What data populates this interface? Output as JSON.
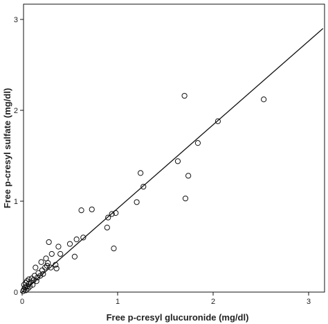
{
  "chart_data": {
    "type": "scatter",
    "title": "",
    "xlabel": "Free p-cresyl glucuronide (mg/dl)",
    "ylabel": "Free p-cresyl sulfate (mg/dl)",
    "xlim": [
      0,
      3
    ],
    "ylim": [
      0,
      3
    ],
    "xticks": [
      0,
      1,
      2,
      3
    ],
    "yticks": [
      0,
      1,
      2,
      3
    ],
    "grid": false,
    "legend": "none",
    "regression_line": {
      "x": [
        0,
        3.15
      ],
      "y": [
        0,
        2.9
      ]
    },
    "points": [
      {
        "x": 0.01,
        "y": 0.01
      },
      {
        "x": 0.02,
        "y": 0.03
      },
      {
        "x": 0.03,
        "y": 0.05
      },
      {
        "x": 0.02,
        "y": 0.08
      },
      {
        "x": 0.04,
        "y": 0.02
      },
      {
        "x": 0.04,
        "y": 0.1
      },
      {
        "x": 0.05,
        "y": 0.06
      },
      {
        "x": 0.05,
        "y": 0.12
      },
      {
        "x": 0.06,
        "y": 0.04
      },
      {
        "x": 0.07,
        "y": 0.09
      },
      {
        "x": 0.07,
        "y": 0.14
      },
      {
        "x": 0.08,
        "y": 0.06
      },
      {
        "x": 0.09,
        "y": 0.11
      },
      {
        "x": 0.1,
        "y": 0.15
      },
      {
        "x": 0.11,
        "y": 0.08
      },
      {
        "x": 0.12,
        "y": 0.13
      },
      {
        "x": 0.13,
        "y": 0.18
      },
      {
        "x": 0.14,
        "y": 0.27
      },
      {
        "x": 0.15,
        "y": 0.12
      },
      {
        "x": 0.16,
        "y": 0.16
      },
      {
        "x": 0.17,
        "y": 0.21
      },
      {
        "x": 0.19,
        "y": 0.18
      },
      {
        "x": 0.2,
        "y": 0.33
      },
      {
        "x": 0.21,
        "y": 0.24
      },
      {
        "x": 0.22,
        "y": 0.2
      },
      {
        "x": 0.24,
        "y": 0.27
      },
      {
        "x": 0.25,
        "y": 0.37
      },
      {
        "x": 0.26,
        "y": 0.29
      },
      {
        "x": 0.27,
        "y": 0.32
      },
      {
        "x": 0.28,
        "y": 0.55
      },
      {
        "x": 0.3,
        "y": 0.27
      },
      {
        "x": 0.31,
        "y": 0.42
      },
      {
        "x": 0.35,
        "y": 0.3
      },
      {
        "x": 0.36,
        "y": 0.26
      },
      {
        "x": 0.38,
        "y": 0.5
      },
      {
        "x": 0.4,
        "y": 0.42
      },
      {
        "x": 0.5,
        "y": 0.53
      },
      {
        "x": 0.55,
        "y": 0.39
      },
      {
        "x": 0.57,
        "y": 0.58
      },
      {
        "x": 0.62,
        "y": 0.9
      },
      {
        "x": 0.64,
        "y": 0.6
      },
      {
        "x": 0.73,
        "y": 0.91
      },
      {
        "x": 0.89,
        "y": 0.71
      },
      {
        "x": 0.9,
        "y": 0.82
      },
      {
        "x": 0.94,
        "y": 0.86
      },
      {
        "x": 0.96,
        "y": 0.48
      },
      {
        "x": 0.98,
        "y": 0.87
      },
      {
        "x": 1.2,
        "y": 0.99
      },
      {
        "x": 1.24,
        "y": 1.31
      },
      {
        "x": 1.27,
        "y": 1.16
      },
      {
        "x": 1.63,
        "y": 1.44
      },
      {
        "x": 1.7,
        "y": 2.16
      },
      {
        "x": 1.71,
        "y": 1.03
      },
      {
        "x": 1.74,
        "y": 1.28
      },
      {
        "x": 1.84,
        "y": 1.64
      },
      {
        "x": 2.05,
        "y": 1.88
      },
      {
        "x": 2.53,
        "y": 2.12
      }
    ]
  }
}
